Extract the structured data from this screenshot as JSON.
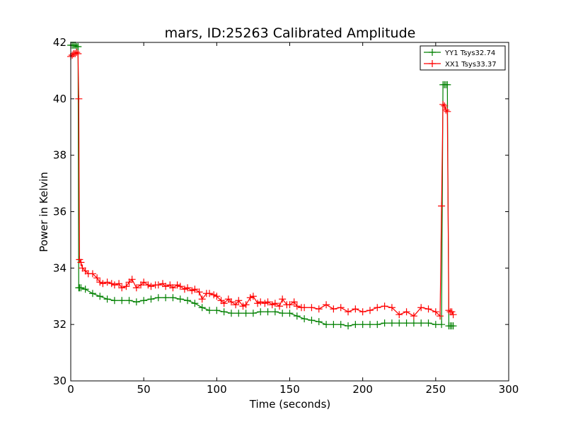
{
  "chart_data": {
    "type": "line",
    "title": "mars, ID:25263 Calibrated Amplitude",
    "xlabel": "Time (seconds)",
    "ylabel": "Power in Kelvin",
    "xlim": [
      0,
      300
    ],
    "ylim": [
      30,
      42
    ],
    "xticks": [
      0,
      50,
      100,
      150,
      200,
      250,
      300
    ],
    "yticks": [
      30,
      32,
      34,
      36,
      38,
      40,
      42
    ],
    "grid": false,
    "legend_position": "top-right",
    "marker": "+",
    "series": [
      {
        "name": "YY1 Tsys32.74",
        "color": "#008000",
        "x": [
          0,
          1,
          2,
          3,
          4,
          5,
          5.5,
          6,
          7,
          10,
          15,
          20,
          25,
          30,
          35,
          40,
          45,
          50,
          55,
          60,
          65,
          70,
          75,
          80,
          85,
          90,
          95,
          100,
          105,
          110,
          115,
          120,
          125,
          130,
          135,
          140,
          145,
          150,
          155,
          160,
          165,
          170,
          175,
          180,
          185,
          190,
          195,
          200,
          205,
          210,
          215,
          220,
          225,
          230,
          235,
          240,
          245,
          250,
          254,
          255,
          256,
          257,
          258,
          259,
          260,
          261,
          262
        ],
        "y": [
          41.9,
          41.9,
          41.9,
          41.9,
          41.85,
          41.85,
          33.3,
          33.3,
          33.3,
          33.25,
          33.1,
          33.0,
          32.9,
          32.85,
          32.85,
          32.85,
          32.8,
          32.85,
          32.9,
          32.95,
          32.95,
          32.95,
          32.9,
          32.85,
          32.75,
          32.6,
          32.5,
          32.5,
          32.45,
          32.4,
          32.4,
          32.4,
          32.4,
          32.45,
          32.45,
          32.45,
          32.4,
          32.4,
          32.3,
          32.2,
          32.15,
          32.1,
          32.0,
          32.0,
          32.0,
          31.95,
          32.0,
          32.0,
          32.0,
          32.0,
          32.05,
          32.05,
          32.05,
          32.05,
          32.05,
          32.05,
          32.05,
          32.0,
          32.0,
          40.5,
          40.5,
          40.5,
          40.5,
          31.95,
          31.95,
          31.95,
          31.95
        ]
      },
      {
        "name": "XX1 Tsys33.37",
        "color": "#ff0000",
        "x": [
          0,
          1,
          2,
          3,
          4,
          5,
          5.5,
          6,
          7,
          8,
          10,
          12,
          15,
          18,
          20,
          22,
          25,
          28,
          30,
          33,
          35,
          38,
          40,
          42,
          45,
          48,
          50,
          53,
          55,
          58,
          60,
          63,
          65,
          68,
          70,
          73,
          75,
          78,
          80,
          83,
          85,
          88,
          90,
          93,
          95,
          98,
          100,
          103,
          105,
          108,
          110,
          113,
          115,
          118,
          120,
          123,
          125,
          128,
          130,
          133,
          135,
          138,
          140,
          143,
          145,
          148,
          150,
          153,
          155,
          158,
          160,
          165,
          170,
          175,
          180,
          185,
          190,
          195,
          200,
          205,
          210,
          215,
          220,
          225,
          230,
          235,
          240,
          245,
          250,
          253,
          254,
          255,
          256,
          257,
          258,
          259,
          260,
          261,
          262
        ],
        "y": [
          41.5,
          41.55,
          41.6,
          41.6,
          41.65,
          41.6,
          40.0,
          34.3,
          34.2,
          34.0,
          33.9,
          33.8,
          33.8,
          33.65,
          33.5,
          33.45,
          33.5,
          33.45,
          33.4,
          33.45,
          33.3,
          33.35,
          33.5,
          33.6,
          33.3,
          33.4,
          33.5,
          33.4,
          33.35,
          33.4,
          33.4,
          33.45,
          33.35,
          33.4,
          33.3,
          33.4,
          33.35,
          33.25,
          33.3,
          33.2,
          33.25,
          33.15,
          32.9,
          33.1,
          33.1,
          33.05,
          33.0,
          32.85,
          32.75,
          32.9,
          32.8,
          32.7,
          32.85,
          32.65,
          32.7,
          32.95,
          33.0,
          32.75,
          32.8,
          32.75,
          32.8,
          32.7,
          32.75,
          32.65,
          32.9,
          32.7,
          32.7,
          32.8,
          32.65,
          32.6,
          32.6,
          32.6,
          32.55,
          32.7,
          32.55,
          32.6,
          32.45,
          32.55,
          32.45,
          32.5,
          32.6,
          32.65,
          32.6,
          32.35,
          32.45,
          32.3,
          32.6,
          32.55,
          32.45,
          32.3,
          36.2,
          39.8,
          39.75,
          39.6,
          39.55,
          32.5,
          32.45,
          32.45,
          32.35
        ]
      }
    ]
  }
}
